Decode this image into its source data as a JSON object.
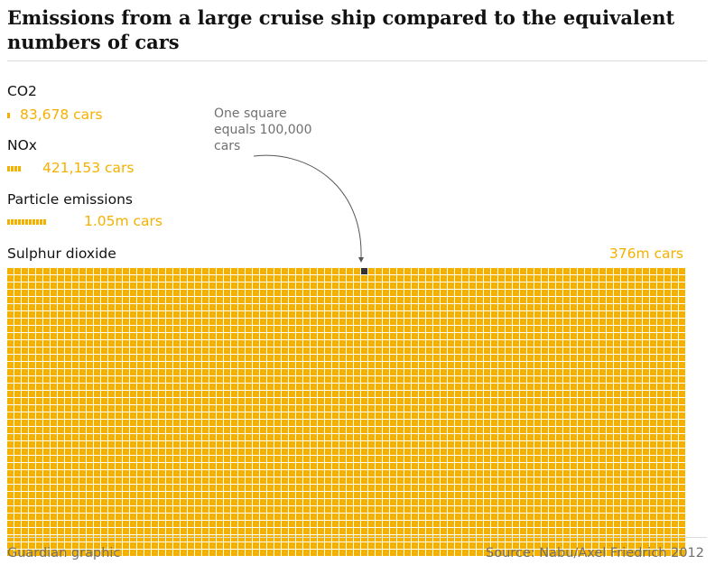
{
  "title": "Emissions from a large cruise ship compared to the equivalent numbers of cars",
  "note": "One square equals 100,000 cars",
  "footer": {
    "left": "Guardian graphic",
    "right": "Source: Nabu/Axel Friedrich 2012"
  },
  "colors": {
    "accent": "#f5b100",
    "text": "#121212",
    "muted": "#707070",
    "marker": "#333333"
  },
  "chart_data": {
    "type": "waffle",
    "title": "Emissions from a large cruise ship compared to the equivalent numbers of cars",
    "unit": "One square equals 100,000 cars",
    "square_value": 100000,
    "grid_columns": 94,
    "series": [
      {
        "name": "CO2",
        "value": 83678,
        "label": "83,678 cars",
        "squares": 1
      },
      {
        "name": "NOx",
        "value": 421153,
        "label": "421,153 cars",
        "squares": 4
      },
      {
        "name": "Particle emissions",
        "value": 1050000,
        "label": "1.05m cars",
        "squares": 11
      },
      {
        "name": "Sulphur dioxide",
        "value": 376000000,
        "label": "376m cars",
        "squares": 3760
      }
    ]
  }
}
